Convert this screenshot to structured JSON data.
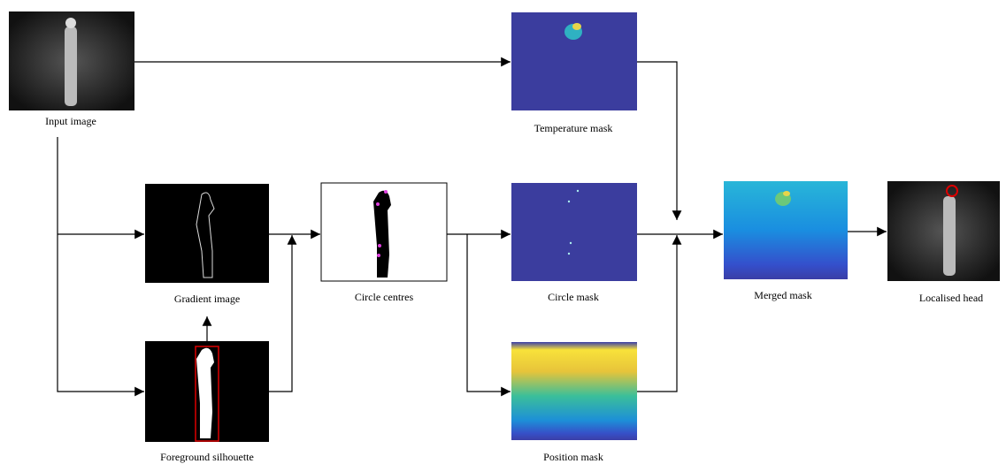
{
  "nodes": [
    {
      "label": "Input image"
    },
    {
      "label": "Temperature mask"
    },
    {
      "label": "Gradient image"
    },
    {
      "label": "Foreground silhouette"
    },
    {
      "label": "Circle centres"
    },
    {
      "label": "Circle mask"
    },
    {
      "label": "Position mask"
    },
    {
      "label": "Merged mask"
    },
    {
      "label": "Localised head"
    }
  ]
}
